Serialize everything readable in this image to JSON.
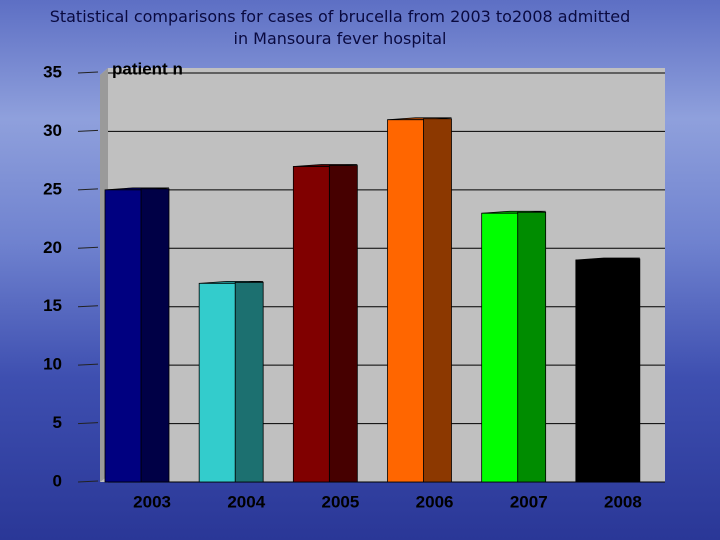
{
  "chart_data": {
    "type": "bar",
    "title": "Statistical comparisons for cases of brucella from 2003 to2008 admitted  in Mansoura fever hospital",
    "y_label": "patient n",
    "categories": [
      "2003",
      "2004",
      "2005",
      "2006",
      "2007",
      "2008"
    ],
    "values": [
      25,
      17,
      27,
      31,
      23,
      19
    ],
    "colors": [
      "#000080",
      "#33cccc",
      "#800000",
      "#ff6600",
      "#00ff00",
      "#000000"
    ],
    "ylim": [
      0,
      35
    ],
    "yticks": [
      0,
      5,
      10,
      15,
      20,
      25,
      30,
      35
    ],
    "grid": true
  }
}
